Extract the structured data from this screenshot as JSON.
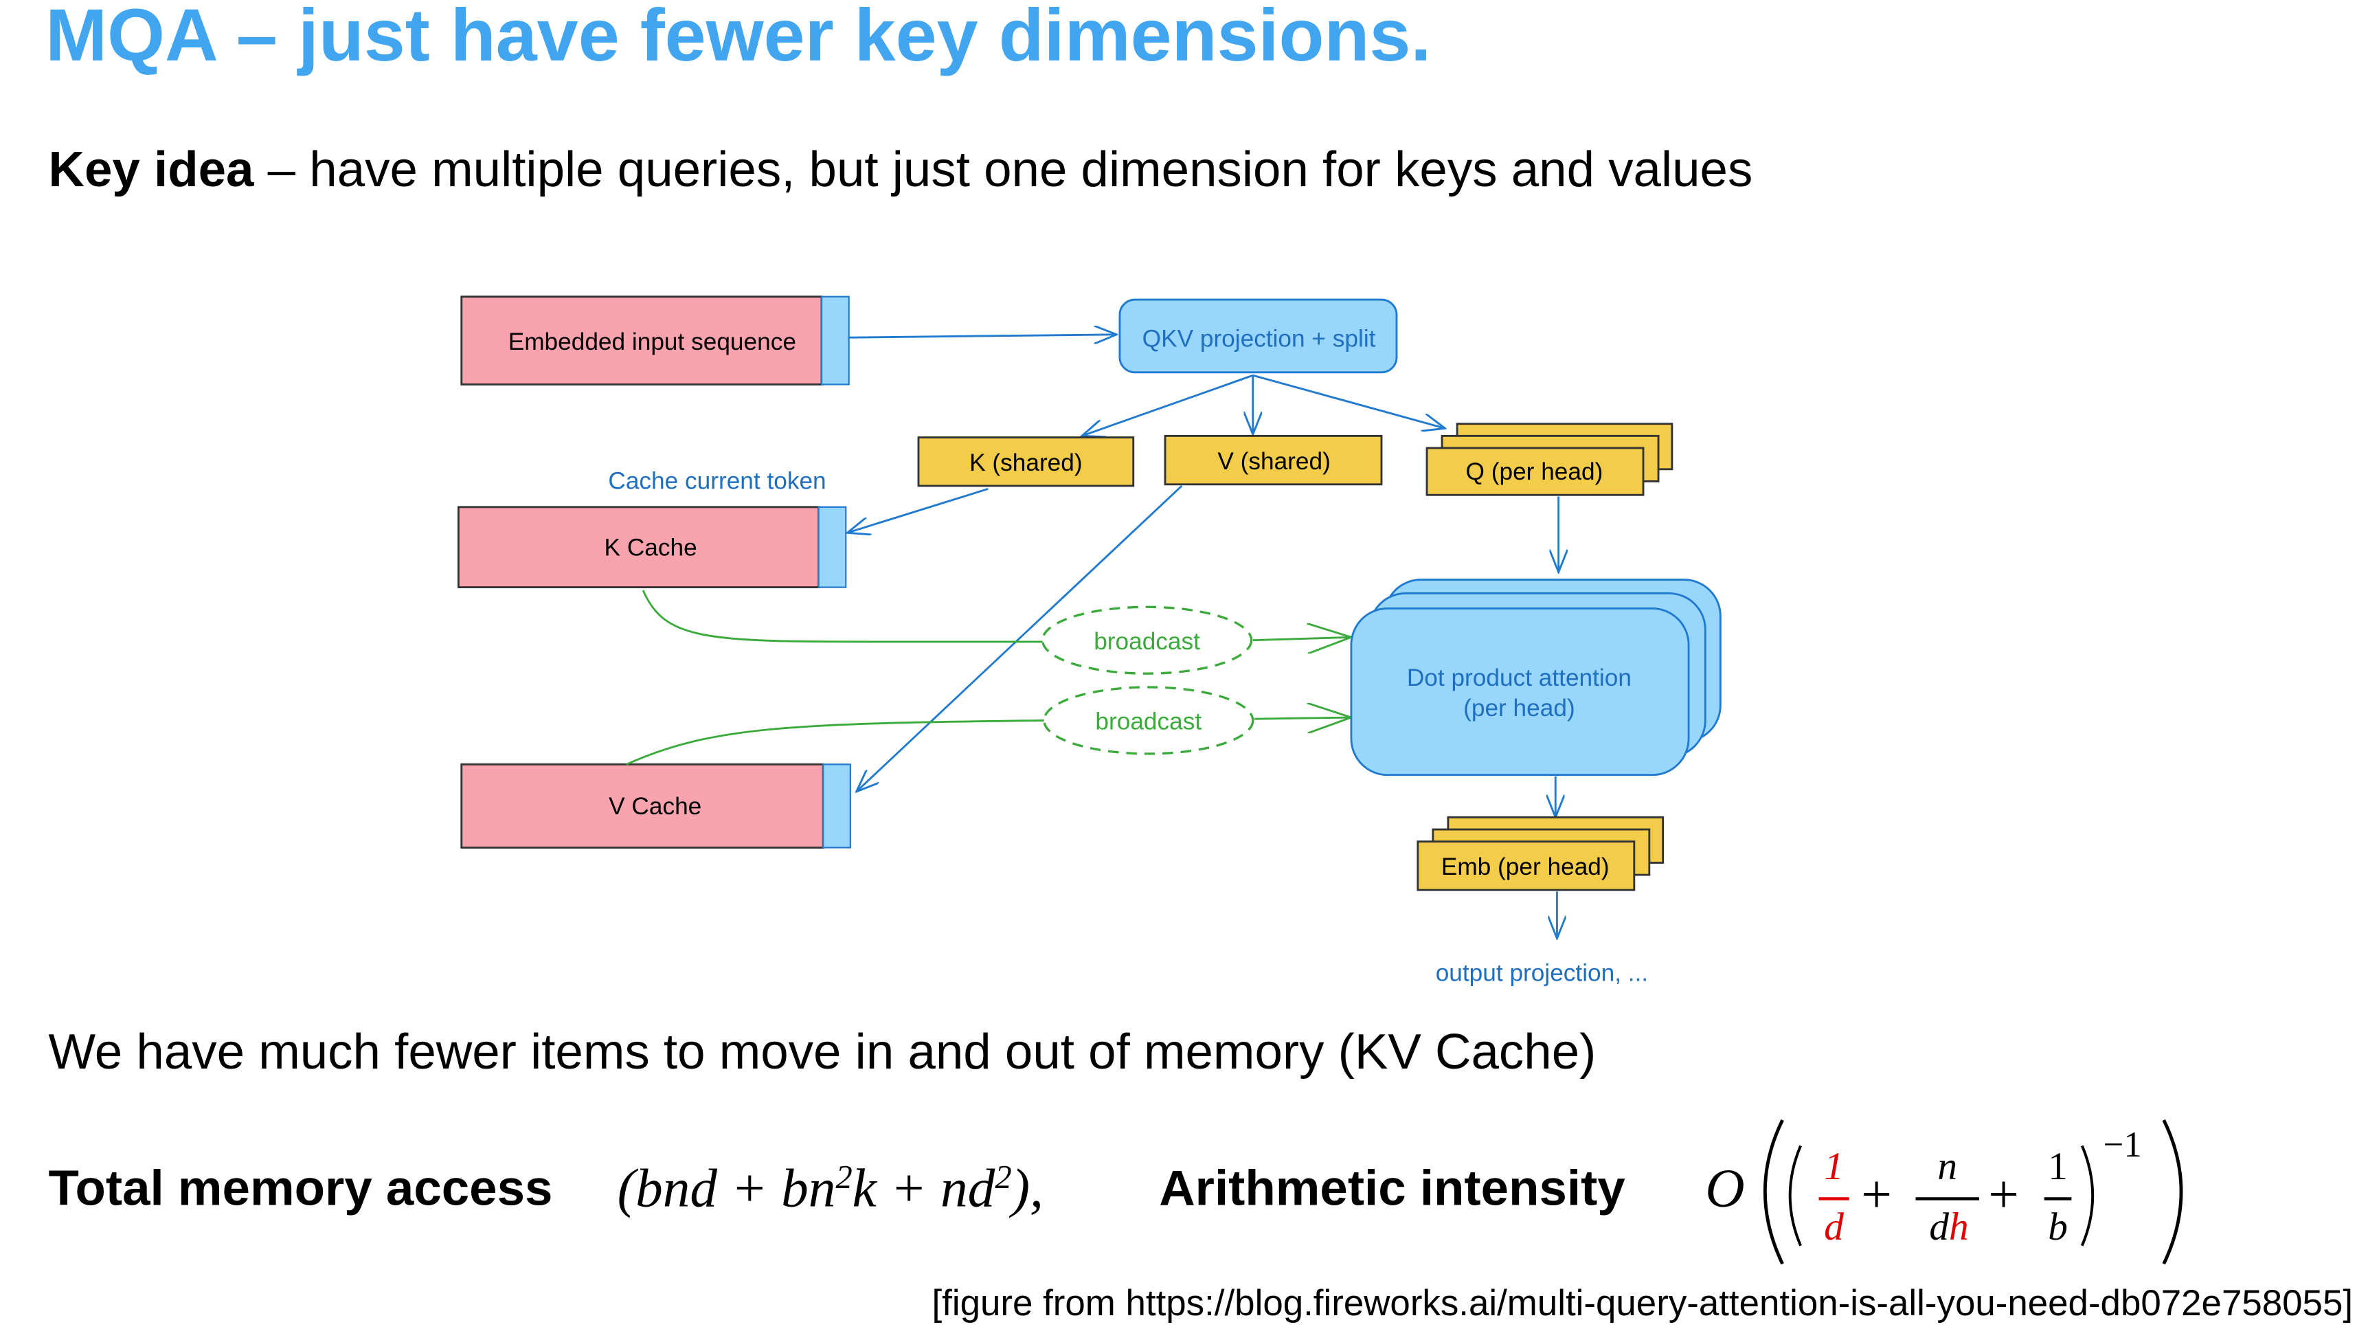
{
  "title": "MQA – just have fewer key dimensions.",
  "key_idea": {
    "bold": "Key idea",
    "rest": " – have multiple queries, but just one dimension for keys and values"
  },
  "diagram": {
    "embedded_input": "Embedded input sequence",
    "qkv": "QKV projection + split",
    "k_shared": "K (shared)",
    "v_shared": "V (shared)",
    "q_per_head": "Q (per head)",
    "cache_current_token": "Cache current token",
    "k_cache": "K Cache",
    "v_cache": "V Cache",
    "broadcast_1": "broadcast",
    "broadcast_2": "broadcast",
    "dot_product_line1": "Dot product attention",
    "dot_product_line2": "(per head)",
    "emb_per_head": "Emb (per head)",
    "output_projection": "output projection, ...",
    "colors": {
      "pink": "#f9a3ae",
      "light_blue": "#99d6fb",
      "blue_stroke": "#1f7ad0",
      "yellow": "#f3cd4a",
      "green": "#3aaa3a",
      "title_blue": "#42a5f0",
      "highlight_red": "#e00000"
    }
  },
  "body_line": "We have much fewer items to move in and out of memory (KV Cache)",
  "formula": {
    "total_label": "Total memory access",
    "total_expr_a": "(bnd + bn",
    "total_exp1": "2",
    "total_expr_b": "k + nd",
    "total_exp2": "2",
    "total_expr_c": "),",
    "ai_label": "Arithmetic intensity",
    "big_o": "O",
    "f1_num": "1",
    "f1_den": "d",
    "plus1": "+",
    "f2_num": "n",
    "f2_den_a": "d",
    "f2_den_b": "h",
    "plus2": "+",
    "f3_num": "1",
    "f3_den": "b",
    "exponent": "−1"
  },
  "citation": "[figure from https://blog.fireworks.ai/multi-query-attention-is-all-you-need-db072e758055]"
}
